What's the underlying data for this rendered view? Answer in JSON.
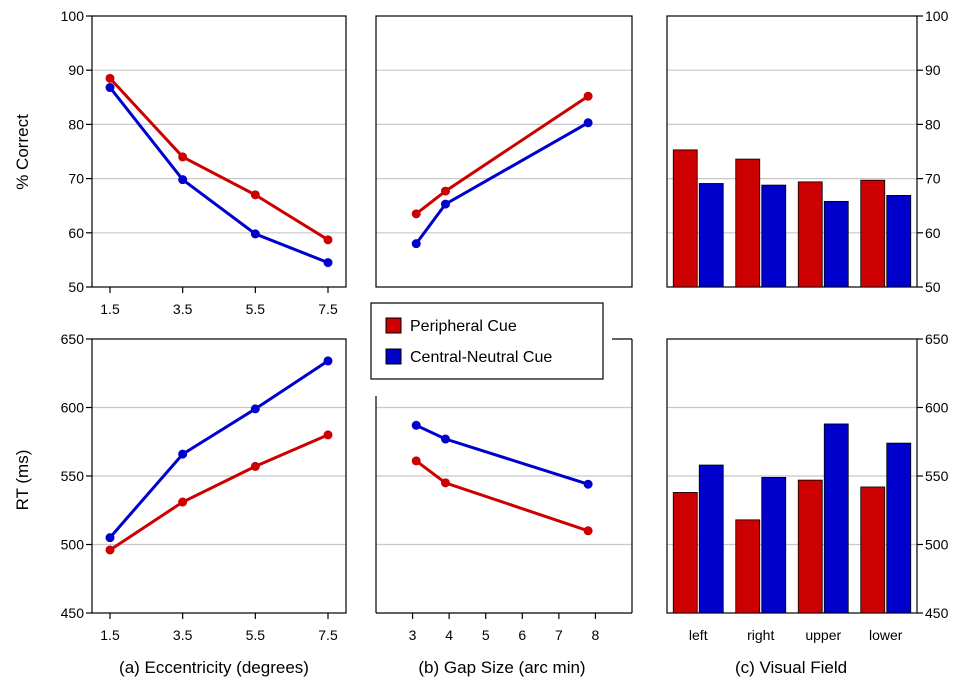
{
  "colors": {
    "peripheral": "#cc0000",
    "central": "#0000cc",
    "grid": "#c8c8c8"
  },
  "legend": {
    "items": [
      "Peripheral Cue",
      "Central-Neutral Cue"
    ]
  },
  "captions": {
    "a": "(a) Eccentricity (degrees)",
    "b": "(b) Gap Size (arc min)",
    "c": "(c) Visual Field"
  },
  "ylabels": {
    "accuracy": "% Correct",
    "rt": "RT (ms)"
  },
  "chart_data": [
    {
      "type": "line",
      "panel": "a-top",
      "x": [
        1.5,
        3.5,
        5.5,
        7.5
      ],
      "xticks": [
        "1.5",
        "3.5",
        "5.5",
        "7.5"
      ],
      "xlim": [
        1.5,
        7.5
      ],
      "ylim": [
        50,
        100
      ],
      "yticks": [
        50,
        60,
        70,
        80,
        90,
        100
      ],
      "ylabel": "% Correct",
      "series": [
        {
          "name": "Peripheral Cue",
          "values": [
            88.5,
            74,
            67,
            58.7
          ]
        },
        {
          "name": "Central-Neutral Cue",
          "values": [
            86.8,
            69.8,
            59.8,
            54.5
          ]
        }
      ]
    },
    {
      "type": "line",
      "panel": "b-top",
      "x": [
        3.1,
        3.9,
        7.8
      ],
      "xlim": [
        2,
        9
      ],
      "ylim": [
        50,
        100
      ],
      "series": [
        {
          "name": "Peripheral Cue",
          "values": [
            63.5,
            67.7,
            85.2
          ]
        },
        {
          "name": "Central-Neutral Cue",
          "values": [
            58,
            65.3,
            80.3
          ]
        }
      ]
    },
    {
      "type": "bar",
      "panel": "c-top",
      "categories": [
        "left",
        "right",
        "upper",
        "lower"
      ],
      "ylim": [
        50,
        100
      ],
      "yticks": [
        50,
        60,
        70,
        80,
        90,
        100
      ],
      "axis_side": "right",
      "series": [
        {
          "name": "Peripheral Cue",
          "values": [
            75.3,
            73.6,
            69.4,
            69.7
          ]
        },
        {
          "name": "Central-Neutral Cue",
          "values": [
            69.1,
            68.8,
            65.8,
            66.9
          ]
        }
      ]
    },
    {
      "type": "line",
      "panel": "a-bottom",
      "x": [
        1.5,
        3.5,
        5.5,
        7.5
      ],
      "xticks": [
        "1.5",
        "3.5",
        "5.5",
        "7.5"
      ],
      "xlim": [
        1.5,
        7.5
      ],
      "ylim": [
        450,
        650
      ],
      "yticks": [
        450,
        500,
        550,
        600,
        650
      ],
      "ylabel": "RT (ms)",
      "series": [
        {
          "name": "Peripheral Cue",
          "values": [
            496,
            531,
            557,
            580
          ]
        },
        {
          "name": "Central-Neutral Cue",
          "values": [
            505,
            566,
            599,
            634
          ]
        }
      ]
    },
    {
      "type": "line",
      "panel": "b-bottom",
      "x": [
        3.1,
        3.9,
        7.8
      ],
      "xticks": [
        "3",
        "4",
        "5",
        "6",
        "7",
        "8"
      ],
      "xlim": [
        2,
        9
      ],
      "ylim": [
        450,
        650
      ],
      "series": [
        {
          "name": "Peripheral Cue",
          "values": [
            561,
            545,
            510
          ]
        },
        {
          "name": "Central-Neutral Cue",
          "values": [
            587,
            577,
            544
          ]
        }
      ]
    },
    {
      "type": "bar",
      "panel": "c-bottom",
      "categories": [
        "left",
        "right",
        "upper",
        "lower"
      ],
      "ylim": [
        450,
        650
      ],
      "yticks": [
        450,
        500,
        550,
        600,
        650
      ],
      "axis_side": "right",
      "series": [
        {
          "name": "Peripheral Cue",
          "values": [
            538,
            518,
            547,
            542
          ]
        },
        {
          "name": "Central-Neutral Cue",
          "values": [
            558,
            549,
            588,
            574
          ]
        }
      ]
    }
  ]
}
